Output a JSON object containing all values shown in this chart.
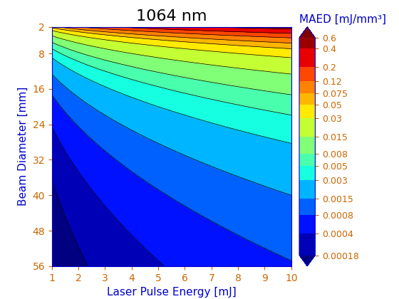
{
  "title": "1064 nm",
  "xlabel": "Laser Pulse Energy [mJ]",
  "ylabel": "Beam Diameter [mm]",
  "colorbar_label": "MAED [mJ/mm³]",
  "x_min": 1,
  "x_max": 10,
  "y_min": 2,
  "y_max": 56,
  "contour_levels": [
    0.00018,
    0.0004,
    0.0008,
    0.0015,
    0.003,
    0.005,
    0.008,
    0.015,
    0.03,
    0.05,
    0.075,
    0.12,
    0.2,
    0.4,
    0.6
  ],
  "colorbar_ticks": [
    0.00018,
    0.0004,
    0.0008,
    0.0015,
    0.003,
    0.005,
    0.008,
    0.015,
    0.03,
    0.05,
    0.075,
    0.12,
    0.2,
    0.4,
    0.6
  ],
  "colorbar_tick_labels": [
    "0.00018",
    "0.0004",
    "0.0008",
    "0.0015",
    "0.003",
    "0.005",
    "0.008",
    "0.015",
    "0.03",
    "0.05",
    "0.075",
    "0.12",
    "0.2",
    "0.4",
    "0.6"
  ],
  "x_ticks": [
    1,
    2,
    3,
    4,
    5,
    6,
    7,
    8,
    9,
    10
  ],
  "y_ticks": [
    2,
    8,
    16,
    24,
    32,
    40,
    48,
    56
  ],
  "title_fontsize": 16,
  "label_fontsize": 11,
  "tick_fontsize": 10,
  "colorbar_label_fontsize": 11,
  "axis_color": "#0000CC",
  "tick_color": "#CC6600",
  "colorbar_tick_color": "#CC6600",
  "title_color": "#000000",
  "C_scale": 0.24
}
